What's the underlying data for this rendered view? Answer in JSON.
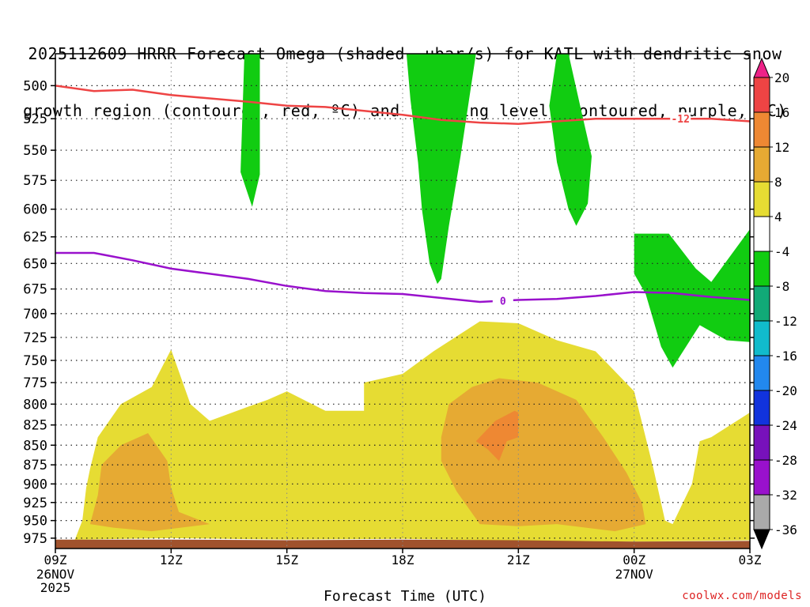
{
  "title": {
    "line1": "2025112609 HRRR Forecast Omega (shaded, μbar/s) for KATL with dendritic snow",
    "line2": "growth region (contoured, red, ºC) and freezing level (contoured, purple, ºC)"
  },
  "watermark": "coolwx.com/models",
  "chart_data": {
    "type": "contour",
    "xlabel": "Forecast Time (UTC)",
    "ylabel": "",
    "x_ticks": [
      {
        "label": "09Z",
        "sub": [
          "26NOV",
          "2025"
        ],
        "hour": 9
      },
      {
        "label": "12Z",
        "sub": [],
        "hour": 12
      },
      {
        "label": "15Z",
        "sub": [],
        "hour": 15
      },
      {
        "label": "18Z",
        "sub": [],
        "hour": 18
      },
      {
        "label": "21Z",
        "sub": [],
        "hour": 21
      },
      {
        "label": "00Z",
        "sub": [
          "27NOV"
        ],
        "hour": 24
      },
      {
        "label": "03Z",
        "sub": [],
        "hour": 27
      }
    ],
    "xlim": [
      9,
      27
    ],
    "y_ticks": [
      500,
      525,
      550,
      575,
      600,
      625,
      650,
      675,
      700,
      725,
      750,
      775,
      800,
      825,
      850,
      875,
      900,
      925,
      950,
      975
    ],
    "ylim": [
      990,
      477
    ],
    "y_scale": "log-pressure",
    "grid": true,
    "colorbar": {
      "levels": [
        20,
        16,
        12,
        8,
        4,
        -4,
        -8,
        -12,
        -16,
        -20,
        -24,
        -28,
        -32,
        -36
      ],
      "colors": [
        "#ee2288",
        "#ee4444",
        "#ee8833",
        "#e6aa33",
        "#e6dc33",
        "#ffffff",
        "#11cc11",
        "#11aa77",
        "#11bbcc",
        "#2288ee",
        "#1133dd",
        "#7711bb",
        "#9911cc",
        "#aaaaaa",
        "#000000"
      ]
    },
    "contours": [
      {
        "name": "dendritic snow growth (-12 ºC)",
        "color": "#ee4444",
        "label": "-12",
        "points": [
          [
            9,
            500
          ],
          [
            10,
            504
          ],
          [
            11,
            503
          ],
          [
            12,
            507
          ],
          [
            14,
            512
          ],
          [
            15,
            515
          ],
          [
            16,
            516
          ],
          [
            17,
            519
          ],
          [
            18,
            522
          ],
          [
            19,
            526
          ],
          [
            20,
            528
          ],
          [
            21,
            529
          ],
          [
            22,
            527
          ],
          [
            23,
            525
          ],
          [
            24,
            525
          ],
          [
            25,
            525
          ],
          [
            26,
            525
          ],
          [
            27,
            527
          ]
        ]
      },
      {
        "name": "freezing level (0 ºC)",
        "color": "#9911cc",
        "label": "0",
        "points": [
          [
            9,
            640
          ],
          [
            10,
            640
          ],
          [
            11,
            647
          ],
          [
            12,
            655
          ],
          [
            14,
            665
          ],
          [
            15,
            672
          ],
          [
            16,
            677
          ],
          [
            17,
            679
          ],
          [
            18,
            680
          ],
          [
            19,
            684
          ],
          [
            20,
            688
          ],
          [
            21,
            686
          ],
          [
            22,
            685
          ],
          [
            23,
            682
          ],
          [
            24,
            678
          ],
          [
            25,
            679
          ],
          [
            26,
            683
          ],
          [
            27,
            686
          ]
        ]
      }
    ],
    "shaded_regions": [
      {
        "name": "omega 4 to 8",
        "color": "#e6dc33",
        "points": [
          [
            9.5,
            978
          ],
          [
            9.7,
            950
          ],
          [
            9.8,
            905
          ],
          [
            9.9,
            880
          ],
          [
            10.1,
            840
          ],
          [
            10.7,
            800
          ],
          [
            11.5,
            780
          ],
          [
            12,
            738
          ],
          [
            12.5,
            800
          ],
          [
            13,
            820
          ],
          [
            14,
            803
          ],
          [
            14.5,
            795
          ],
          [
            15,
            785
          ],
          [
            16,
            808
          ],
          [
            17,
            808
          ],
          [
            17,
            775
          ],
          [
            18,
            765
          ],
          [
            18.8,
            740
          ],
          [
            20,
            708
          ],
          [
            21,
            710
          ],
          [
            22,
            728
          ],
          [
            23,
            740
          ],
          [
            24,
            785
          ],
          [
            24.5,
            880
          ],
          [
            24.8,
            950
          ],
          [
            25,
            955
          ],
          [
            25.5,
            900
          ],
          [
            25.7,
            845
          ],
          [
            26,
            840
          ],
          [
            27,
            810
          ],
          [
            27,
            978
          ],
          [
            24,
            980
          ],
          [
            20,
            978
          ],
          [
            18,
            976
          ],
          [
            15,
            977
          ],
          [
            12,
            975
          ],
          [
            9.6,
            977
          ]
        ]
      },
      {
        "name": "omega 8 to 12 west",
        "color": "#e6aa33",
        "points": [
          [
            9.9,
            955
          ],
          [
            10.1,
            915
          ],
          [
            10.2,
            875
          ],
          [
            10.7,
            850
          ],
          [
            11.4,
            835
          ],
          [
            11.9,
            870
          ],
          [
            12.0,
            905
          ],
          [
            12.2,
            938
          ],
          [
            13,
            955
          ],
          [
            11.5,
            965
          ],
          [
            10.5,
            960
          ]
        ]
      },
      {
        "name": "omega 8 to 12 east",
        "color": "#e6aa33",
        "points": [
          [
            19,
            840
          ],
          [
            19.2,
            800
          ],
          [
            19.8,
            780
          ],
          [
            20.5,
            770
          ],
          [
            21.5,
            775
          ],
          [
            22.5,
            795
          ],
          [
            23.2,
            840
          ],
          [
            23.8,
            885
          ],
          [
            24.2,
            925
          ],
          [
            24.3,
            955
          ],
          [
            23.5,
            965
          ],
          [
            22,
            955
          ],
          [
            21,
            958
          ],
          [
            20,
            955
          ],
          [
            19.4,
            910
          ],
          [
            19,
            870
          ]
        ]
      },
      {
        "name": "omega 12 to 16",
        "color": "#ee8833",
        "points": [
          [
            19.9,
            845
          ],
          [
            20.4,
            820
          ],
          [
            20.9,
            808
          ],
          [
            21,
            810
          ],
          [
            21,
            840
          ],
          [
            20.7,
            845
          ],
          [
            20.5,
            870
          ],
          [
            20.2,
            855
          ]
        ]
      },
      {
        "name": "omega -4 to -8 a",
        "color": "#11cc11",
        "points": [
          [
            13.9,
            477
          ],
          [
            14.3,
            477
          ],
          [
            14.3,
            570
          ],
          [
            14.1,
            598
          ],
          [
            13.8,
            568
          ]
        ]
      },
      {
        "name": "omega -4 to -8 b",
        "color": "#11cc11",
        "points": [
          [
            18.1,
            477
          ],
          [
            19.9,
            477
          ],
          [
            19.5,
            555
          ],
          [
            19.2,
            615
          ],
          [
            19,
            665
          ],
          [
            18.9,
            670
          ],
          [
            18.7,
            650
          ],
          [
            18.5,
            600
          ],
          [
            18.4,
            560
          ],
          [
            18.2,
            510
          ]
        ]
      },
      {
        "name": "omega -4 to -8 c",
        "color": "#11cc11",
        "points": [
          [
            22.0,
            477
          ],
          [
            22.3,
            477
          ],
          [
            22.6,
            515
          ],
          [
            22.9,
            555
          ],
          [
            22.8,
            595
          ],
          [
            22.5,
            615
          ],
          [
            22.3,
            600
          ],
          [
            22.0,
            560
          ],
          [
            21.8,
            515
          ]
        ]
      },
      {
        "name": "omega -4 to -8 d",
        "color": "#11cc11",
        "points": [
          [
            24,
            622
          ],
          [
            24.9,
            622
          ],
          [
            25.6,
            655
          ],
          [
            26,
            668
          ],
          [
            27,
            618
          ],
          [
            27,
            730
          ],
          [
            26.4,
            728
          ],
          [
            25.7,
            712
          ],
          [
            25.0,
            758
          ],
          [
            24.7,
            735
          ],
          [
            24.3,
            680
          ],
          [
            24,
            660
          ]
        ]
      },
      {
        "name": "ground",
        "color": "#a0522d",
        "points": [
          [
            9,
            977
          ],
          [
            12,
            977
          ],
          [
            15,
            978
          ],
          [
            18,
            977
          ],
          [
            21,
            978
          ],
          [
            24,
            980
          ],
          [
            27,
            979
          ],
          [
            27,
            995
          ],
          [
            9,
            995
          ]
        ]
      }
    ]
  }
}
